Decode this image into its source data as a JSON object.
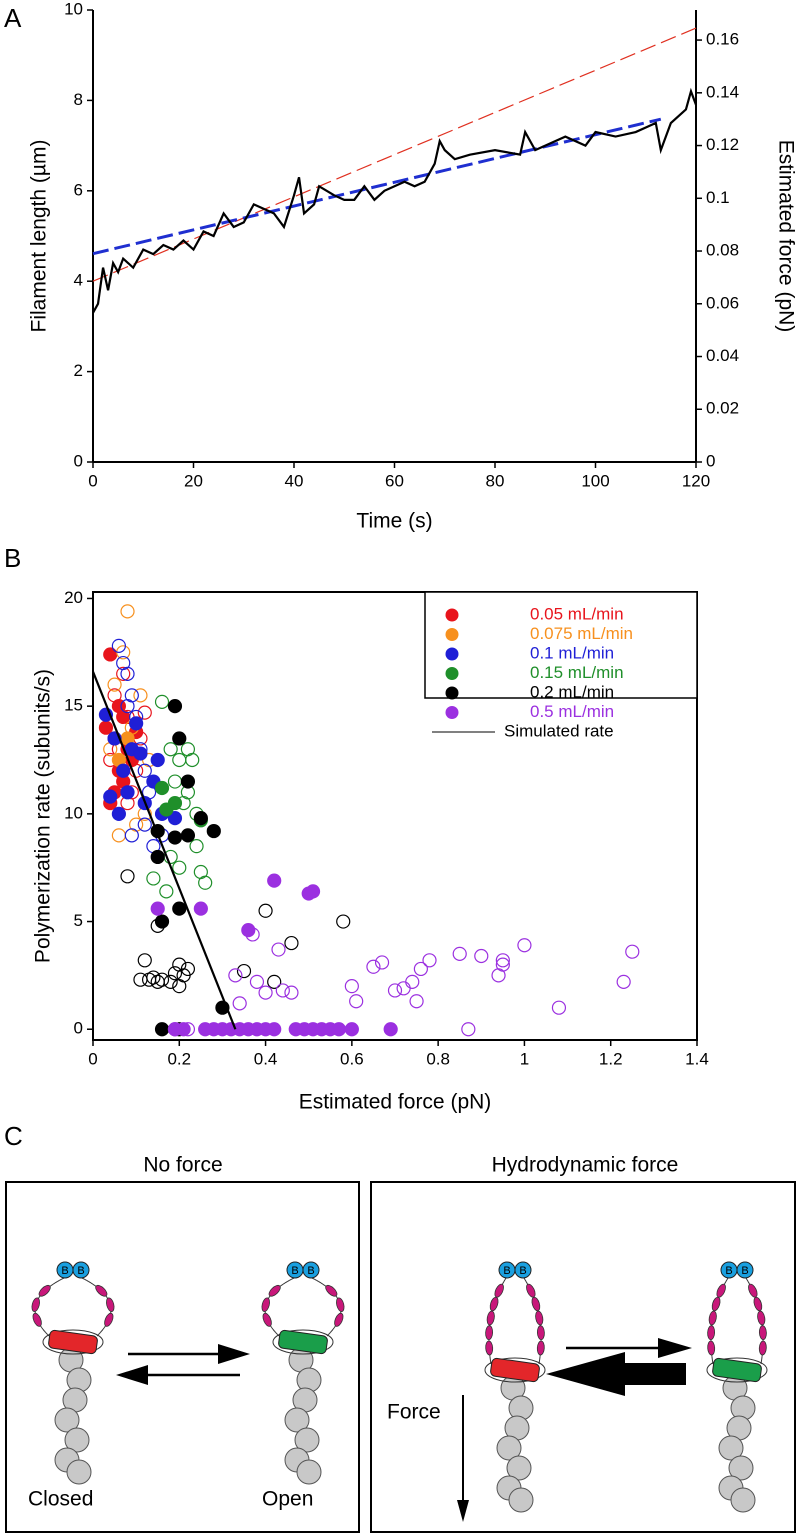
{
  "chart_data": [
    {
      "type": "line",
      "panel_label": "A",
      "xlabel": "Time (s)",
      "ylabel": "Filament length (µm)",
      "y2label": "Estimated force (pN)",
      "xlim": [
        0,
        120
      ],
      "xticks": [
        0,
        20,
        40,
        60,
        80,
        100,
        120
      ],
      "ylim": [
        0,
        10
      ],
      "yticks": [
        0,
        2,
        4,
        6,
        8,
        10
      ],
      "y2lim": [
        0,
        0.1714
      ],
      "y2ticks": [
        0,
        0.02,
        0.04,
        0.06,
        0.08,
        0.1,
        0.12,
        0.14,
        0.16
      ],
      "series": [
        {
          "color": "#e03020",
          "style": "dashed",
          "x": [
            0,
            120
          ],
          "values": [
            4.0,
            9.6
          ]
        },
        {
          "color": "#1f2fd0",
          "style": "dashed",
          "axis": "y2",
          "x": [
            0,
            113
          ],
          "values": [
            0.079,
            0.13
          ]
        },
        {
          "color": "#000000",
          "style": "solid",
          "x": [
            0,
            1,
            2,
            3,
            4,
            5,
            6,
            8,
            10,
            12,
            14,
            16,
            18,
            20,
            22,
            24,
            26,
            28,
            30,
            32,
            34,
            36,
            38,
            40,
            41,
            42,
            44,
            45,
            48,
            50,
            52,
            54,
            56,
            58,
            60,
            62,
            64,
            66,
            68,
            69,
            70,
            72,
            75,
            80,
            85,
            86,
            88,
            90,
            94,
            98,
            100,
            104,
            108,
            112,
            113,
            115,
            118,
            119,
            120
          ],
          "values": [
            3.3,
            3.5,
            4.3,
            3.8,
            4.4,
            4.2,
            4.5,
            4.3,
            4.7,
            4.6,
            4.8,
            4.7,
            4.9,
            4.7,
            5.1,
            5.0,
            5.5,
            5.2,
            5.3,
            5.7,
            5.6,
            5.5,
            5.2,
            5.9,
            6.3,
            5.5,
            5.7,
            6.1,
            5.9,
            5.8,
            5.8,
            6.1,
            5.8,
            6.0,
            6.1,
            6.2,
            6.1,
            6.2,
            6.6,
            7.1,
            6.9,
            6.7,
            6.8,
            6.9,
            6.8,
            7.3,
            6.9,
            7.0,
            7.2,
            7.0,
            7.3,
            7.2,
            7.3,
            7.5,
            6.9,
            7.5,
            7.8,
            8.2,
            7.9
          ]
        }
      ]
    },
    {
      "type": "scatter",
      "panel_label": "B",
      "xlabel": "Estimated force (pN)",
      "ylabel": "Polymerization rate (subunits/s)",
      "xlim": [
        0,
        1.4
      ],
      "xticks": [
        0,
        0.2,
        0.4,
        0.6,
        0.8,
        1,
        1.2,
        1.4
      ],
      "ylim": [
        -0.5,
        20.3
      ],
      "yticks": [
        0,
        5,
        10,
        15,
        20
      ],
      "legend": "upper right",
      "series": [
        {
          "name": "0.05 mL/min",
          "color": "#e8141c",
          "filled": {
            "x": [
              0.04,
              0.03,
              0.05,
              0.06,
              0.04,
              0.07,
              0.08,
              0.06,
              0.09,
              0.05,
              0.07,
              0.1
            ],
            "values": [
              17.4,
              14,
              13.5,
              12,
              10.5,
              11.5,
              13,
              15,
              12.5,
              11,
              14.5,
              13.8
            ]
          },
          "open": {
            "x": [
              0.05,
              0.06,
              0.08,
              0.09,
              0.1,
              0.07,
              0.11,
              0.04,
              0.12,
              0.08
            ],
            "values": [
              15.5,
              13,
              14.5,
              11,
              12,
              16.5,
              13.5,
              12.5,
              14.7,
              10.5
            ]
          }
        },
        {
          "name": "0.075 mL/min",
          "color": "#f7901e",
          "filled": {
            "x": [
              0.06,
              0.08
            ],
            "values": [
              12.5,
              13.5
            ]
          },
          "open": {
            "x": [
              0.08,
              0.07,
              0.05,
              0.06,
              0.09,
              0.11,
              0.12,
              0.04,
              0.1,
              0.13
            ],
            "values": [
              19.4,
              17.5,
              16,
              9,
              14,
              15.5,
              10,
              13,
              9.5,
              12.5
            ]
          }
        },
        {
          "name": "0.1 mL/min",
          "color": "#1f1fd6",
          "filled": {
            "x": [
              0.03,
              0.05,
              0.04,
              0.06,
              0.07,
              0.09,
              0.11,
              0.08,
              0.14,
              0.16,
              0.12,
              0.19,
              0.15,
              0.1
            ],
            "values": [
              14.6,
              13.5,
              10.8,
              10,
              12,
              13,
              12.8,
              11,
              11.5,
              10,
              10.5,
              9.8,
              12.5,
              14.2
            ]
          },
          "open": {
            "x": [
              0.06,
              0.07,
              0.08,
              0.09,
              0.1,
              0.11,
              0.12,
              0.13,
              0.09,
              0.14,
              0.16,
              0.12,
              0.08
            ],
            "values": [
              17.8,
              17,
              16.5,
              15.5,
              14.5,
              13,
              12,
              11,
              9,
              8.5,
              9,
              9.5,
              15
            ]
          }
        },
        {
          "name": "0.15 mL/min",
          "color": "#1f8f2a",
          "filled": {
            "x": [
              0.17,
              0.16,
              0.19,
              0.25
            ],
            "values": [
              10.2,
              11.2,
              10.5,
              9.7
            ]
          },
          "open": {
            "x": [
              0.16,
              0.18,
              0.2,
              0.22,
              0.23,
              0.19,
              0.21,
              0.24,
              0.25,
              0.26,
              0.18,
              0.2,
              0.14,
              0.17,
              0.22,
              0.24
            ],
            "values": [
              15.2,
              13,
              12.5,
              13,
              12.5,
              11.5,
              10.5,
              10,
              7.3,
              6.8,
              8,
              7.5,
              7,
              6.4,
              11,
              8.5
            ]
          }
        },
        {
          "name": "0.2 mL/min",
          "color": "#000000",
          "filled": {
            "x": [
              0.19,
              0.2,
              0.22,
              0.15,
              0.15,
              0.19,
              0.22,
              0.25,
              0.28,
              0.16,
              0.2,
              0.2,
              0.3,
              0.16
            ],
            "values": [
              15,
              13.5,
              11.5,
              9.2,
              8,
              8.9,
              9,
              9.8,
              9.2,
              0,
              0,
              5.6,
              1,
              5
            ]
          },
          "open": {
            "x": [
              0.08,
              0.12,
              0.13,
              0.14,
              0.15,
              0.16,
              0.18,
              0.19,
              0.2,
              0.21,
              0.2,
              0.22,
              0.15,
              0.35,
              0.4,
              0.42,
              0.46,
              0.58,
              0.11
            ],
            "values": [
              7.1,
              3.2,
              2.3,
              2.4,
              2.2,
              2.3,
              2.2,
              2.6,
              3,
              2.5,
              2,
              2.8,
              4.8,
              2.7,
              5.5,
              2.2,
              4,
              5,
              2.3
            ]
          }
        },
        {
          "name": "0.5 mL/min",
          "color": "#9b30e0",
          "filled": {
            "x": [
              0.15,
              0.25,
              0.36,
              0.42,
              0.5,
              0.51,
              0.19,
              0.21,
              0.26,
              0.28,
              0.3,
              0.32,
              0.34,
              0.36,
              0.38,
              0.4,
              0.42,
              0.47,
              0.49,
              0.51,
              0.53,
              0.55,
              0.57,
              0.6,
              0.69
            ],
            "values": [
              5.6,
              5.6,
              4.6,
              6.9,
              6.3,
              6.4,
              0,
              0,
              0,
              0,
              0,
              0,
              0,
              0,
              0,
              0,
              0,
              0,
              0,
              0,
              0,
              0,
              0,
              0,
              0
            ]
          },
          "open": {
            "x": [
              0.19,
              0.22,
              0.33,
              0.34,
              0.37,
              0.38,
              0.4,
              0.43,
              0.44,
              0.46,
              0.6,
              0.61,
              0.65,
              0.67,
              0.72,
              0.74,
              0.75,
              0.76,
              0.78,
              0.85,
              0.87,
              0.9,
              0.94,
              0.95,
              0.95,
              1.0,
              1.08,
              1.23,
              1.25,
              0.7
            ],
            "values": [
              0,
              0,
              2.5,
              1.2,
              4.4,
              2.2,
              1.7,
              3.7,
              1.8,
              1.7,
              2,
              1.3,
              2.9,
              3.1,
              1.9,
              2.2,
              1.3,
              2.8,
              3.2,
              3.5,
              0,
              3.4,
              2.5,
              3,
              3.2,
              3.9,
              1,
              2.2,
              3.6,
              1.8
            ]
          }
        },
        {
          "name": "Simulated rate",
          "color": "#000000",
          "x": [
            0,
            0.33
          ],
          "values": [
            16.6,
            0
          ]
        }
      ]
    }
  ],
  "diagram": {
    "panel_label": "C",
    "left_title": "No force",
    "right_title": "Hydrodynamic force",
    "bead_label": "B",
    "closed_label": "Closed",
    "open_label": "Open",
    "force_label": "Force"
  }
}
